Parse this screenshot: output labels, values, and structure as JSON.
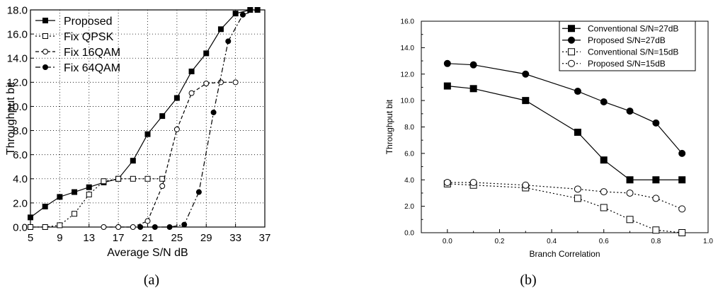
{
  "chart_data": [
    {
      "type": "line",
      "panel_label": "(a)",
      "xlabel": "Average S/N   dB",
      "ylabel": "Throughput   bit",
      "xlim": [
        5,
        37
      ],
      "ylim": [
        0,
        18
      ],
      "xticks": [
        5,
        9,
        13,
        17,
        21,
        25,
        29,
        33,
        37
      ],
      "xtick_labels": [
        "5",
        "9",
        "13",
        "17",
        "21",
        "25",
        "29",
        "33",
        "37"
      ],
      "yticks": [
        0,
        2,
        4,
        6,
        8,
        10,
        12,
        14,
        16,
        18
      ],
      "ytick_labels": [
        "0.0",
        "2.0",
        "4.0",
        "6.0",
        "8.0",
        "10.0",
        "12.0",
        "14.0",
        "16.0",
        "18.0"
      ],
      "grid": true,
      "legend_position": "top-left",
      "series": [
        {
          "name": "Proposed",
          "style": "solid",
          "marker": "square-filled",
          "color": "#000000",
          "x": [
            5,
            7,
            9,
            11,
            13,
            15,
            17,
            19,
            21,
            23,
            25,
            27,
            29,
            31,
            33,
            35,
            36
          ],
          "y": [
            0.8,
            1.7,
            2.5,
            2.9,
            3.3,
            3.7,
            4.0,
            5.5,
            7.7,
            9.2,
            10.7,
            12.9,
            14.4,
            16.4,
            17.7,
            18.0,
            18.0
          ]
        },
        {
          "name": "Fix QPSK",
          "style": "dotted",
          "marker": "square-open",
          "color": "#000000",
          "x": [
            5,
            7,
            9,
            11,
            13,
            15,
            17,
            19,
            21,
            23
          ],
          "y": [
            0.0,
            0.0,
            0.15,
            1.1,
            2.7,
            3.8,
            4.0,
            4.0,
            4.0,
            4.0
          ]
        },
        {
          "name": "Fix 16QAM",
          "style": "dashed",
          "marker": "circle-open",
          "color": "#000000",
          "x": [
            15,
            17,
            19,
            21,
            23,
            25,
            27,
            29,
            31,
            33
          ],
          "y": [
            0.0,
            0.0,
            0.0,
            0.5,
            3.4,
            8.1,
            11.1,
            11.9,
            12.0,
            12.0
          ]
        },
        {
          "name": "Fix 64QAM",
          "style": "dashdot",
          "marker": "circle-filled",
          "color": "#000000",
          "x": [
            20,
            22,
            24,
            26,
            28,
            30,
            32,
            34,
            36
          ],
          "y": [
            0.0,
            0.0,
            0.0,
            0.2,
            2.9,
            9.5,
            15.4,
            17.6,
            18.0
          ]
        }
      ]
    },
    {
      "type": "line",
      "panel_label": "(b)",
      "xlabel": "Branch Correlation",
      "ylabel": "Throughput   bit",
      "xlim": [
        -0.1,
        1.0
      ],
      "ylim": [
        0,
        16
      ],
      "xticks": [
        0.0,
        0.2,
        0.4,
        0.6,
        0.8,
        1.0
      ],
      "xtick_labels": [
        "0.0",
        "0.2",
        "0.4",
        "0.6",
        "0.8",
        "1.0"
      ],
      "yticks": [
        0,
        2,
        4,
        6,
        8,
        10,
        12,
        14,
        16
      ],
      "ytick_labels": [
        "0.0",
        "2.0",
        "4.0",
        "6.0",
        "8.0",
        "10.0",
        "12.0",
        "14.0",
        "16.0"
      ],
      "grid": false,
      "legend_position": "top-right",
      "series": [
        {
          "name": "Conventional S/N=27dB",
          "style": "solid",
          "marker": "square-filled",
          "color": "#000000",
          "x": [
            0.0,
            0.1,
            0.3,
            0.5,
            0.6,
            0.7,
            0.8,
            0.9
          ],
          "y": [
            11.1,
            10.9,
            10.0,
            7.6,
            5.5,
            4.0,
            4.0,
            4.0
          ]
        },
        {
          "name": "Proposed S/N=27dB",
          "style": "solid",
          "marker": "circle-filled",
          "color": "#000000",
          "x": [
            0.0,
            0.1,
            0.3,
            0.5,
            0.6,
            0.7,
            0.8,
            0.9
          ],
          "y": [
            12.8,
            12.7,
            12.0,
            10.7,
            9.9,
            9.2,
            8.3,
            6.0
          ]
        },
        {
          "name": "Conventional S/N=15dB",
          "style": "dotted",
          "marker": "square-open",
          "color": "#000000",
          "x": [
            0.0,
            0.1,
            0.3,
            0.5,
            0.6,
            0.7,
            0.8,
            0.9
          ],
          "y": [
            3.7,
            3.6,
            3.4,
            2.6,
            1.9,
            1.0,
            0.2,
            0.0
          ]
        },
        {
          "name": "Proposed S/N=15dB",
          "style": "dotted",
          "marker": "circle-open",
          "color": "#000000",
          "x": [
            0.0,
            0.1,
            0.3,
            0.5,
            0.6,
            0.7,
            0.8,
            0.9
          ],
          "y": [
            3.8,
            3.8,
            3.6,
            3.3,
            3.1,
            3.0,
            2.6,
            1.8
          ]
        }
      ]
    }
  ]
}
